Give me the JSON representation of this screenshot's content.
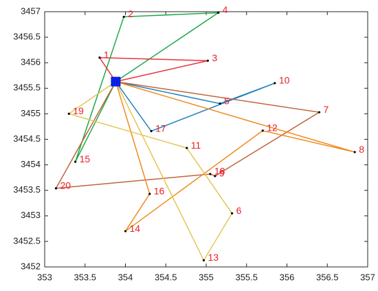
{
  "chart_data": {
    "type": "line",
    "xlim": [
      353,
      357
    ],
    "ylim": [
      3452,
      3457
    ],
    "xticks": [
      353,
      353.5,
      354,
      354.5,
      355,
      355.5,
      356,
      356.5,
      357
    ],
    "yticks": [
      3452,
      3452.5,
      3453,
      3453.5,
      3454,
      3454.5,
      3455,
      3455.5,
      3456,
      3456.5,
      3457
    ],
    "series": [
      {
        "color": "#1ea84a",
        "x": [
          353.88,
          355.15,
          353.98,
          353.38,
          353.88
        ],
        "values": [
          3455.63,
          3456.98,
          3456.9,
          3454.06,
          3455.63
        ]
      },
      {
        "color": "#e8323c",
        "x": [
          353.88,
          353.68,
          355.02,
          353.88
        ],
        "values": [
          3455.63,
          3456.1,
          3456.04,
          3455.63
        ]
      },
      {
        "color": "#1f82c0",
        "x": [
          353.88,
          354.32,
          355.85,
          355.17,
          353.88
        ],
        "values": [
          3455.63,
          3454.66,
          3455.6,
          3455.2,
          3455.63
        ]
      },
      {
        "color": "#c0653a",
        "x": [
          353.88,
          356.4,
          355.11,
          355.05,
          353.14,
          353.88
        ],
        "values": [
          3455.63,
          3455.03,
          3453.78,
          3453.82,
          3453.54,
          3455.63
        ]
      },
      {
        "color": "#f08a1c",
        "x": [
          353.88,
          356.84,
          355.7,
          354.0,
          354.3,
          353.88
        ],
        "values": [
          3455.63,
          3454.25,
          3454.67,
          3452.7,
          3453.43,
          3455.63
        ]
      },
      {
        "color": "#e6c454",
        "x": [
          353.88,
          353.3,
          354.76,
          355.32,
          354.97,
          353.88
        ],
        "values": [
          3455.63,
          3455.0,
          3454.33,
          3453.05,
          3452.13,
          3455.63
        ]
      }
    ],
    "points": {
      "labels": [
        "1",
        "2",
        "3",
        "4",
        "5",
        "6",
        "7",
        "8",
        "9",
        "10",
        "11",
        "12",
        "13",
        "14",
        "15",
        "16",
        "17",
        "18",
        "19",
        "20"
      ],
      "x": [
        353.68,
        353.98,
        355.02,
        355.15,
        355.17,
        355.32,
        356.4,
        356.84,
        355.11,
        355.85,
        354.76,
        355.7,
        354.97,
        354.0,
        353.38,
        354.3,
        354.32,
        355.05,
        353.3,
        353.14
      ],
      "y": [
        3456.1,
        3456.9,
        3456.04,
        3456.98,
        3455.2,
        3453.05,
        3455.03,
        3454.25,
        3453.78,
        3455.6,
        3454.33,
        3454.67,
        3452.13,
        3452.7,
        3454.06,
        3453.43,
        3454.66,
        3453.82,
        3455.0,
        3453.54
      ],
      "color": "#e8202a"
    },
    "depot": {
      "x": 353.88,
      "y": 3455.63,
      "color": "#0a1ee8"
    }
  }
}
